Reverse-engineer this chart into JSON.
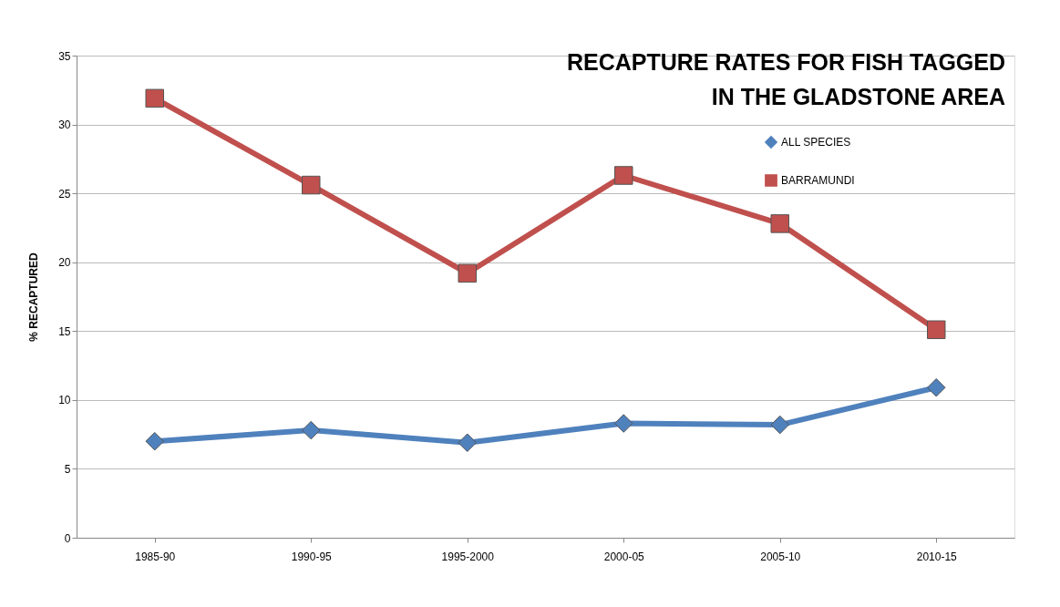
{
  "chart_data": {
    "type": "line",
    "title": [
      "RECAPTURE RATES FOR FISH TAGGED",
      "IN THE GLADSTONE AREA"
    ],
    "ylabel": "% RECAPTURED",
    "categories": [
      "1985-90",
      "1990-95",
      "1995-2000",
      "2000-05",
      "2005-10",
      "2010-15"
    ],
    "series": [
      {
        "name": "ALL SPECIES",
        "color": "#4f81bd",
        "marker": "diamond",
        "values": [
          7.0,
          7.8,
          6.9,
          8.3,
          8.2,
          10.9
        ]
      },
      {
        "name": "BARRAMUNDI",
        "color": "#c0504d",
        "marker": "square",
        "values": [
          31.9,
          25.6,
          19.2,
          26.3,
          22.8,
          15.1
        ]
      }
    ],
    "ylim": [
      0,
      35
    ],
    "yticks": [
      0,
      5,
      10,
      15,
      20,
      25,
      30,
      35
    ],
    "grid": "y",
    "legend": "top right",
    "line_style": "solid"
  }
}
